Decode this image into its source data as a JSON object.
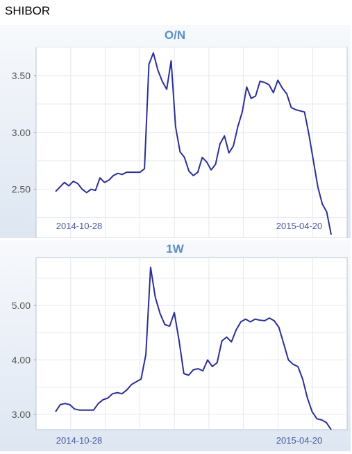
{
  "page": {
    "title": "SHIBOR"
  },
  "colors": {
    "line": "#2a2f96",
    "axis_label": "#4a57a0",
    "title": "#5a8ec2",
    "plot_bg": "#ffffff",
    "panel_bg_top": "#f7f9fc",
    "panel_bg_bottom": "#dde6f2"
  },
  "chart_data": [
    {
      "type": "line",
      "title": "O/N",
      "x_tick_labels": [
        "2014-10-28",
        "2015-04-20"
      ],
      "y_ticks": [
        2.5,
        3.0,
        3.5
      ],
      "y_tick_labels": [
        "2.50",
        "3.00",
        "3.50"
      ],
      "ylim": [
        2.07,
        3.75
      ],
      "grid": true,
      "series": [
        {
          "values": [
            2.48,
            2.52,
            2.56,
            2.53,
            2.57,
            2.55,
            2.5,
            2.47,
            2.5,
            2.49,
            2.6,
            2.56,
            2.58,
            2.62,
            2.64,
            2.63,
            2.65,
            2.65,
            2.65,
            2.65,
            2.68,
            3.6,
            3.7,
            3.55,
            3.45,
            3.38,
            3.63,
            3.05,
            2.83,
            2.78,
            2.66,
            2.62,
            2.65,
            2.78,
            2.74,
            2.67,
            2.72,
            2.9,
            2.97,
            2.82,
            2.88,
            3.05,
            3.18,
            3.4,
            3.3,
            3.32,
            3.45,
            3.44,
            3.42,
            3.35,
            3.46,
            3.39,
            3.34,
            3.22,
            3.2,
            3.19,
            3.18,
            2.98,
            2.75,
            2.52,
            2.37,
            2.3,
            2.1
          ]
        }
      ]
    },
    {
      "type": "line",
      "title": "1W",
      "x_tick_labels": [
        "2014-10-28",
        "2015-04-20"
      ],
      "y_ticks": [
        3.0,
        4.0,
        5.0
      ],
      "y_tick_labels": [
        "3.00",
        "4.00",
        "5.00"
      ],
      "ylim": [
        2.72,
        5.88
      ],
      "grid": true,
      "series": [
        {
          "values": [
            3.05,
            3.18,
            3.2,
            3.18,
            3.1,
            3.08,
            3.08,
            3.08,
            3.08,
            3.2,
            3.27,
            3.3,
            3.38,
            3.4,
            3.38,
            3.45,
            3.55,
            3.6,
            3.65,
            4.1,
            5.7,
            5.15,
            4.85,
            4.65,
            4.62,
            4.87,
            4.35,
            3.75,
            3.72,
            3.82,
            3.84,
            3.8,
            4.0,
            3.88,
            3.95,
            4.35,
            4.42,
            4.33,
            4.55,
            4.7,
            4.75,
            4.7,
            4.75,
            4.73,
            4.72,
            4.77,
            4.72,
            4.6,
            4.3,
            4.0,
            3.92,
            3.88,
            3.65,
            3.3,
            3.05,
            2.92,
            2.9,
            2.85,
            2.72
          ]
        }
      ]
    }
  ]
}
